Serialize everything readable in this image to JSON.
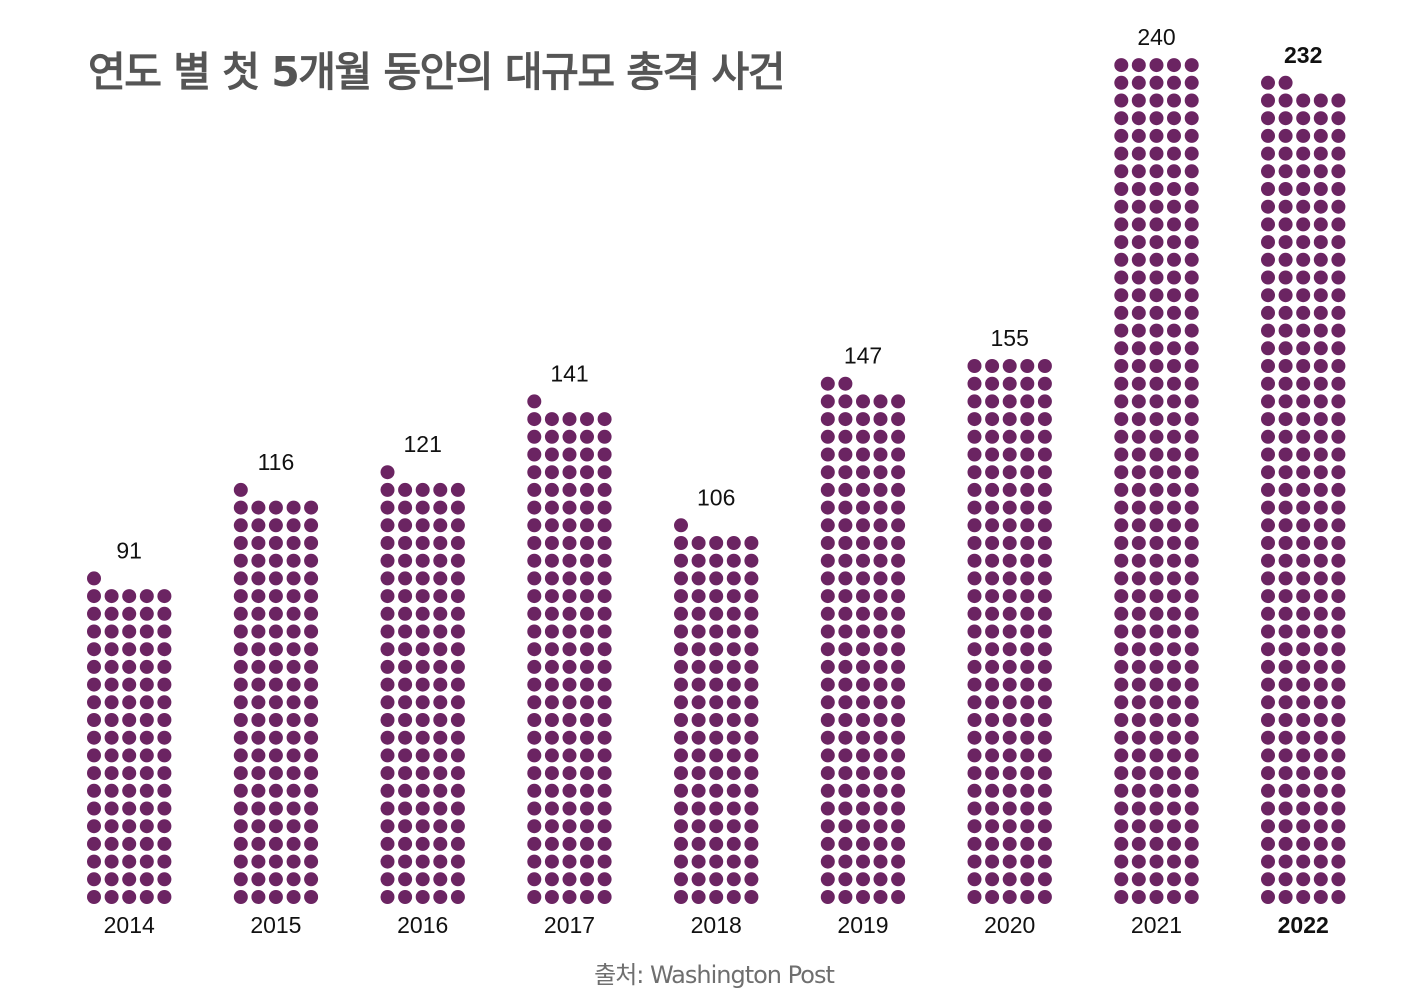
{
  "title": "연도 별 첫 5개월 동안의 대규모 총격 사건",
  "source": "출처: Washington Post",
  "colors": {
    "dot": "#6b2462",
    "text": "#111111",
    "title": "#555555",
    "source": "#6f6f6f"
  },
  "chart_data": {
    "type": "bar",
    "encoding": "unit dot columns, 5 dots per row, one dot per incident",
    "categories": [
      "2014",
      "2015",
      "2016",
      "2017",
      "2018",
      "2019",
      "2020",
      "2021",
      "2022"
    ],
    "values": [
      91,
      116,
      121,
      141,
      106,
      147,
      155,
      240,
      232
    ],
    "highlighted_category": "2022",
    "dots_per_row": 5,
    "grid": false,
    "legend": "none"
  }
}
